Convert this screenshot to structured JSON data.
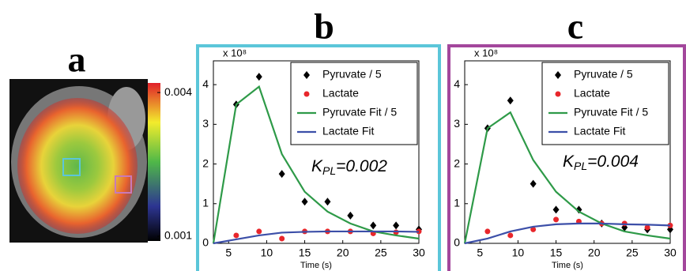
{
  "image_panel": {
    "panel_label": "a",
    "colorbar": {
      "clim": [
        0.0009,
        0.0042
      ],
      "ticks": [
        0.004,
        0.001
      ]
    }
  },
  "chart_data": [
    {
      "type": "line",
      "panel_label": "b",
      "frame_color": "#5bc6d9",
      "y_multiplier": "x 10⁸",
      "xlabel": "Time (s)",
      "annotation_parts": [
        "K",
        "PL",
        "=0.002"
      ],
      "xlim": [
        3,
        30
      ],
      "xticks": [
        5,
        10,
        15,
        20,
        25,
        30
      ],
      "ylim": [
        0,
        4.6
      ],
      "yticks": [
        0,
        1,
        2,
        3,
        4
      ],
      "legend": "upper right",
      "series": [
        {
          "name": "Pyruvate / 5",
          "color": "#000000",
          "marker": "diamond",
          "x": [
            6,
            9,
            12,
            15,
            18,
            21,
            24,
            27,
            30
          ],
          "values": [
            3.5,
            4.2,
            1.75,
            1.05,
            1.05,
            0.7,
            0.45,
            0.45,
            0.35
          ]
        },
        {
          "name": "Lactate",
          "color": "#e8262b",
          "marker": "circle",
          "x": [
            6,
            9,
            12,
            15,
            18,
            21,
            24,
            27,
            30
          ],
          "values": [
            0.2,
            0.3,
            0.12,
            0.3,
            0.3,
            0.3,
            0.25,
            0.28,
            0.3
          ]
        },
        {
          "name": "Pyruvate Fit / 5",
          "color": "#2e9a48",
          "marker": "line",
          "x": [
            3,
            6,
            9,
            12,
            15,
            18,
            21,
            24,
            27,
            30
          ],
          "values": [
            0,
            3.5,
            3.95,
            2.25,
            1.3,
            0.8,
            0.5,
            0.3,
            0.2,
            0.12
          ]
        },
        {
          "name": "Lactate Fit",
          "color": "#3c4fa8",
          "marker": "line",
          "x": [
            3,
            6,
            9,
            12,
            15,
            18,
            21,
            24,
            27,
            30
          ],
          "values": [
            0,
            0.1,
            0.2,
            0.27,
            0.29,
            0.3,
            0.3,
            0.3,
            0.3,
            0.29
          ]
        }
      ]
    },
    {
      "type": "line",
      "panel_label": "c",
      "frame_color": "#a3479c",
      "y_multiplier": "x 10⁸",
      "xlabel": "Time (s)",
      "annotation_parts": [
        "K",
        "PL",
        "=0.004"
      ],
      "xlim": [
        3,
        30
      ],
      "xticks": [
        5,
        10,
        15,
        20,
        25,
        30
      ],
      "ylim": [
        0,
        4.6
      ],
      "yticks": [
        0,
        1,
        2,
        3,
        4
      ],
      "legend": "upper right",
      "series": [
        {
          "name": "Pyruvate / 5",
          "color": "#000000",
          "marker": "diamond",
          "x": [
            6,
            9,
            12,
            15,
            18,
            21,
            24,
            27,
            30
          ],
          "values": [
            2.9,
            3.6,
            1.5,
            0.85,
            0.85,
            0.5,
            0.4,
            0.35,
            0.35
          ]
        },
        {
          "name": "Lactate",
          "color": "#e8262b",
          "marker": "circle",
          "x": [
            6,
            9,
            12,
            15,
            18,
            21,
            24,
            27,
            30
          ],
          "values": [
            0.3,
            0.2,
            0.35,
            0.6,
            0.55,
            0.5,
            0.5,
            0.4,
            0.45
          ]
        },
        {
          "name": "Pyruvate Fit / 5",
          "color": "#2e9a48",
          "marker": "line",
          "x": [
            3,
            6,
            9,
            12,
            15,
            18,
            21,
            24,
            27,
            30
          ],
          "values": [
            0,
            2.9,
            3.3,
            2.1,
            1.3,
            0.8,
            0.5,
            0.3,
            0.2,
            0.12
          ]
        },
        {
          "name": "Lactate Fit",
          "color": "#3c4fa8",
          "marker": "line",
          "x": [
            3,
            6,
            9,
            12,
            15,
            18,
            21,
            24,
            27,
            30
          ],
          "values": [
            0,
            0.12,
            0.3,
            0.42,
            0.48,
            0.5,
            0.5,
            0.48,
            0.47,
            0.45
          ]
        }
      ]
    }
  ]
}
